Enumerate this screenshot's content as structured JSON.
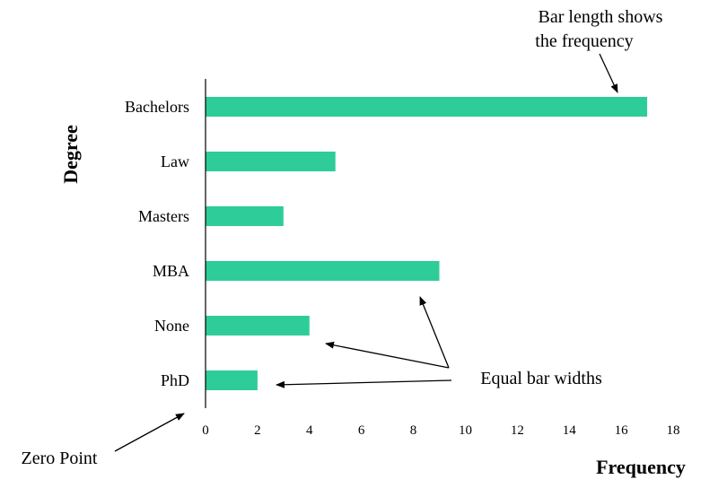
{
  "chart_data": {
    "type": "bar",
    "orientation": "horizontal",
    "categories": [
      "Bachelors",
      "Law",
      "Masters",
      "MBA",
      "None",
      "PhD"
    ],
    "values": [
      17,
      5,
      3,
      9,
      4,
      2
    ],
    "xlabel": "Frequency",
    "ylabel": "Degree",
    "xlim": [
      0,
      18
    ],
    "xticks": [
      0,
      2,
      4,
      6,
      8,
      10,
      12,
      14,
      16,
      18
    ],
    "grid": false,
    "bar_color": "#2ecc99",
    "annotations": [
      {
        "id": "bar-length",
        "lines": [
          "Bar length shows",
          "the frequency"
        ]
      },
      {
        "id": "equal-widths",
        "lines": [
          "Equal bar widths"
        ]
      },
      {
        "id": "zero-point",
        "lines": [
          "Zero Point"
        ]
      }
    ]
  }
}
